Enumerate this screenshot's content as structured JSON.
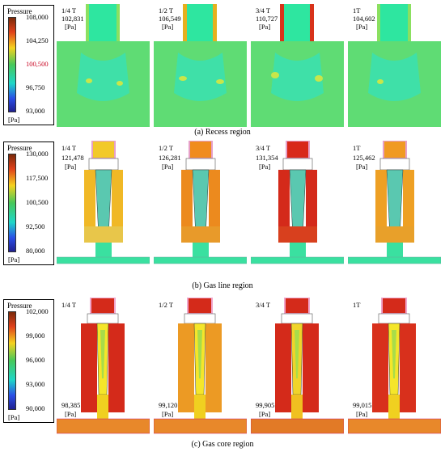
{
  "legend_title": "Pressure",
  "unit": "[Pa]",
  "panels": [
    {
      "caption": "(a) Recess region",
      "ticks": [
        "108,000",
        "104,250",
        "100,500",
        "96,750",
        "93,000"
      ],
      "highlight_tick": 2,
      "frames": [
        {
          "time": "1/4 T",
          "value": "102,831"
        },
        {
          "time": "1/2 T",
          "value": "106,549"
        },
        {
          "time": "3/4 T",
          "value": "110,727"
        },
        {
          "time": "1T",
          "value": "104,602"
        }
      ]
    },
    {
      "caption": "(b) Gas line region",
      "ticks": [
        "130,000",
        "117,500",
        "100,500",
        "92,500",
        "80,000"
      ],
      "frames": [
        {
          "time": "1/4 T",
          "value": "121,478"
        },
        {
          "time": "1/2 T",
          "value": "126,281"
        },
        {
          "time": "3/4 T",
          "value": "131,354"
        },
        {
          "time": "1T",
          "value": "125,462"
        }
      ]
    },
    {
      "caption": "(c) Gas core region",
      "ticks": [
        "102,000",
        "99,000",
        "96,000",
        "93,000",
        "90,000"
      ],
      "frames": [
        {
          "time": "1/4 T",
          "value": "98,385"
        },
        {
          "time": "1/2 T",
          "value": "99,120"
        },
        {
          "time": "3/4 T",
          "value": "99,905"
        },
        {
          "time": "1T",
          "value": "99,015"
        }
      ]
    }
  ]
}
